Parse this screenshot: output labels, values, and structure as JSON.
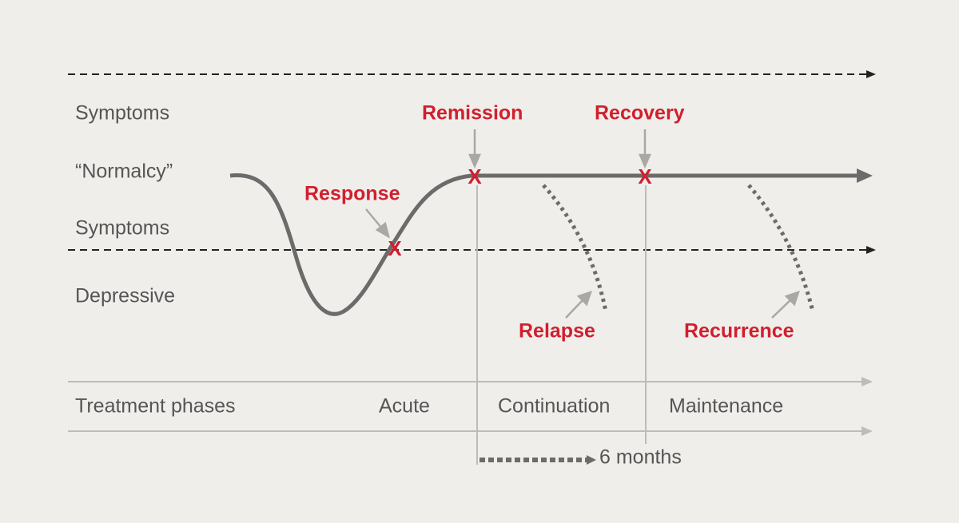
{
  "levels": {
    "top": "Symptoms",
    "normalcy": "“Normalcy”",
    "middle": "Symptoms",
    "bottom": "Depressive"
  },
  "milestones": {
    "remission": "Remission",
    "recovery": "Recovery",
    "response": "Response",
    "relapse": "Relapse",
    "recurrence": "Recurrence",
    "mark": "X"
  },
  "phases": {
    "title": "Treatment phases",
    "acute": "Acute",
    "continuation": "Continuation",
    "maintenance": "Maintenance"
  },
  "duration": "6 months"
}
